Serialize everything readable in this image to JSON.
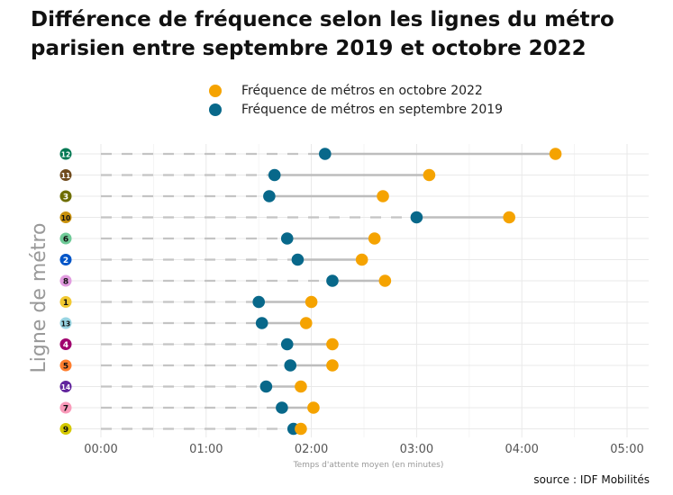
{
  "title_line1": "Différence de fréquence selon les lignes du métro",
  "title_line2": "parisien entre septembre 2019 et octobre 2022",
  "source": "source : IDF Mobilités",
  "colors": {
    "october_2022": "#F5A300",
    "september_2019": "#08688A",
    "connector": "#BDBDBD",
    "grid": "#E9E9E9",
    "dash": "#C4C4C4",
    "axis_text": "#555555",
    "axis_title": "#999999"
  },
  "chart_data": {
    "type": "dumbbell",
    "xlabel": "Temps d'attente moyen (en minutes)",
    "ylabel": "Ligne de métro",
    "xlim_minutes": [
      -0.35,
      5.2
    ],
    "x_ticks": [
      "00:00",
      "01:00",
      "02:00",
      "03:00",
      "04:00",
      "05:00"
    ],
    "x_tick_values": [
      0,
      1,
      2,
      3,
      4,
      5
    ],
    "series": [
      {
        "name": "Fréquence de métros en octobre 2022",
        "key": "oct2022"
      },
      {
        "name": "Fréquence de métros en septembre 2019",
        "key": "sep2019"
      }
    ],
    "lines": [
      {
        "line": "12",
        "color": "#007852",
        "text": "#ffffff",
        "sep2019": 2.13,
        "oct2022": 4.32
      },
      {
        "line": "11",
        "color": "#704B1C",
        "text": "#ffffff",
        "sep2019": 1.65,
        "oct2022": 3.12
      },
      {
        "line": "3",
        "color": "#6E6E00",
        "text": "#ffffff",
        "sep2019": 1.6,
        "oct2022": 2.68
      },
      {
        "line": "10",
        "color": "#C9910D",
        "text": "#111111",
        "sep2019": 3.0,
        "oct2022": 3.88
      },
      {
        "line": "6",
        "color": "#6ECA97",
        "text": "#111111",
        "sep2019": 1.77,
        "oct2022": 2.6
      },
      {
        "line": "2",
        "color": "#0055C8",
        "text": "#ffffff",
        "sep2019": 1.87,
        "oct2022": 2.48
      },
      {
        "line": "8",
        "color": "#E19BDF",
        "text": "#111111",
        "sep2019": 2.2,
        "oct2022": 2.7
      },
      {
        "line": "1",
        "color": "#F2C931",
        "text": "#111111",
        "sep2019": 1.5,
        "oct2022": 2.0
      },
      {
        "line": "13",
        "color": "#98D4E2",
        "text": "#111111",
        "sep2019": 1.53,
        "oct2022": 1.95
      },
      {
        "line": "4",
        "color": "#A0006E",
        "text": "#ffffff",
        "sep2019": 1.77,
        "oct2022": 2.2
      },
      {
        "line": "5",
        "color": "#FF7E2E",
        "text": "#111111",
        "sep2019": 1.8,
        "oct2022": 2.2
      },
      {
        "line": "14",
        "color": "#62259D",
        "text": "#ffffff",
        "sep2019": 1.57,
        "oct2022": 1.9
      },
      {
        "line": "7",
        "color": "#FA9ABA",
        "text": "#111111",
        "sep2019": 1.72,
        "oct2022": 2.02
      },
      {
        "line": "9",
        "color": "#D5C900",
        "text": "#111111",
        "sep2019": 1.83,
        "oct2022": 1.9
      }
    ]
  }
}
